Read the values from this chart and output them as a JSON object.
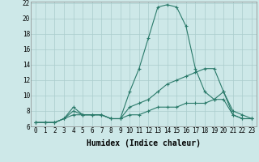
{
  "xlabel": "Humidex (Indice chaleur)",
  "background_color": "#cde8e8",
  "grid_color": "#aacccc",
  "line_color": "#2a7a6a",
  "x_values": [
    0,
    1,
    2,
    3,
    4,
    5,
    6,
    7,
    8,
    9,
    10,
    11,
    12,
    13,
    14,
    15,
    16,
    17,
    18,
    19,
    20,
    21,
    22,
    23
  ],
  "line1": [
    6.5,
    6.5,
    6.5,
    7.0,
    8.5,
    7.5,
    7.5,
    7.5,
    7.0,
    7.0,
    10.5,
    13.5,
    17.5,
    21.5,
    21.8,
    21.5,
    19.0,
    13.5,
    10.5,
    9.5,
    9.5,
    7.5,
    7.0,
    7.0
  ],
  "line2": [
    6.5,
    6.5,
    6.5,
    7.0,
    8.0,
    7.5,
    7.5,
    7.5,
    7.0,
    7.0,
    8.5,
    9.0,
    9.5,
    10.5,
    11.5,
    12.0,
    12.5,
    13.0,
    13.5,
    13.5,
    10.5,
    7.5,
    7.0,
    7.0
  ],
  "line3": [
    6.5,
    6.5,
    6.5,
    7.0,
    7.5,
    7.5,
    7.5,
    7.5,
    7.0,
    7.0,
    7.5,
    7.5,
    8.0,
    8.5,
    8.5,
    8.5,
    9.0,
    9.0,
    9.0,
    9.5,
    10.5,
    8.0,
    7.5,
    7.0
  ],
  "ylim": [
    6,
    22
  ],
  "xlim": [
    -0.5,
    23.5
  ],
  "yticks": [
    6,
    8,
    10,
    12,
    14,
    16,
    18,
    20,
    22
  ],
  "xticks": [
    0,
    1,
    2,
    3,
    4,
    5,
    6,
    7,
    8,
    9,
    10,
    11,
    12,
    13,
    14,
    15,
    16,
    17,
    18,
    19,
    20,
    21,
    22,
    23
  ],
  "xtick_labels": [
    "0",
    "1",
    "2",
    "3",
    "4",
    "5",
    "6",
    "7",
    "8",
    "9",
    "10",
    "11",
    "12",
    "13",
    "14",
    "15",
    "16",
    "17",
    "18",
    "19",
    "20",
    "21",
    "22",
    "23"
  ],
  "fontsize_ticks": 5.5,
  "fontsize_xlabel": 7
}
